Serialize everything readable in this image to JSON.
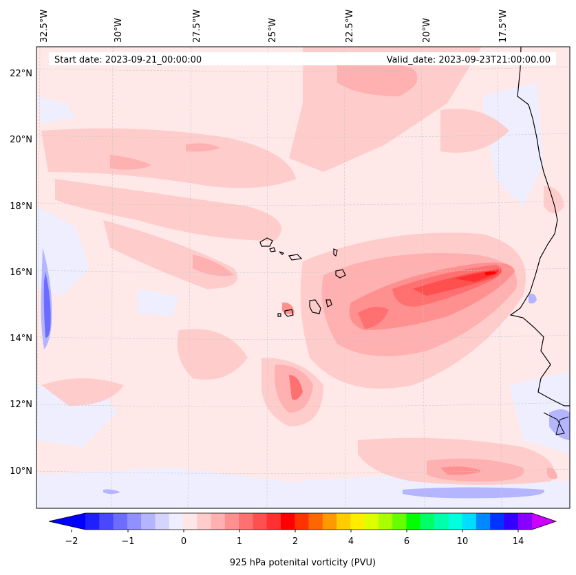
{
  "header": {
    "start_date": "Start date: 2023-09-21_00:00:00",
    "valid_date": "Valid_date: 2023-09-23T21:00:00.00"
  },
  "map": {
    "longitude_labels": [
      "32.5°W",
      "30°W",
      "27.5°W",
      "25°W",
      "22.5°W",
      "20°W",
      "17.5°W"
    ],
    "latitude_labels": [
      "22°N",
      "20°N",
      "18°N",
      "16°N",
      "14°N",
      "12°N",
      "10°N"
    ]
  },
  "colorbar": {
    "title": "925 hPa potenital vorticity (PVU)",
    "tick_labels": [
      "−2",
      "−1",
      "0",
      "1",
      "2",
      "4",
      "6",
      "10",
      "14"
    ],
    "colors": [
      "#0000ff",
      "#2020ff",
      "#4848ff",
      "#6c6cff",
      "#9090ff",
      "#b4b4ff",
      "#d4d4ff",
      "#eeeeff",
      "#ffe6e6",
      "#ffcccc",
      "#ffb0b0",
      "#ff9090",
      "#ff7070",
      "#ff5050",
      "#ff3030",
      "#ff0000",
      "#ff3300",
      "#ff6600",
      "#ff9900",
      "#ffcc00",
      "#ffee00",
      "#ddff00",
      "#aaff00",
      "#66ff00",
      "#00ff00",
      "#00ff66",
      "#00ffaa",
      "#00ffdd",
      "#00ddff",
      "#0088ff",
      "#0033ff",
      "#3300ff",
      "#8800ff",
      "#cc00ff"
    ]
  }
}
